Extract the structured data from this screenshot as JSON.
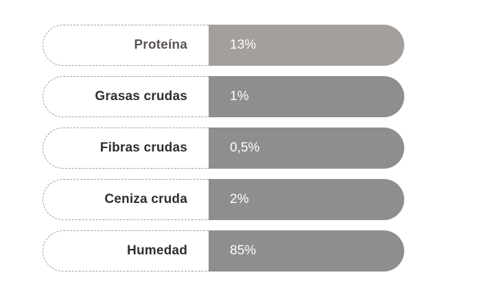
{
  "nutrients": [
    {
      "label": "Proteína",
      "value": "13%",
      "highlight": true
    },
    {
      "label": "Grasas crudas",
      "value": "1%",
      "highlight": false
    },
    {
      "label": "Fibras crudas",
      "value": "0,5%",
      "highlight": false
    },
    {
      "label": "Ceniza cruda",
      "value": "2%",
      "highlight": false
    },
    {
      "label": "Humedad",
      "value": "85%",
      "highlight": false
    }
  ],
  "colors": {
    "value_bg": "#8e8e8e",
    "value_bg_highlight": "#a39f9c",
    "label_text": "#2f2f2f",
    "value_text": "#ffffff"
  }
}
